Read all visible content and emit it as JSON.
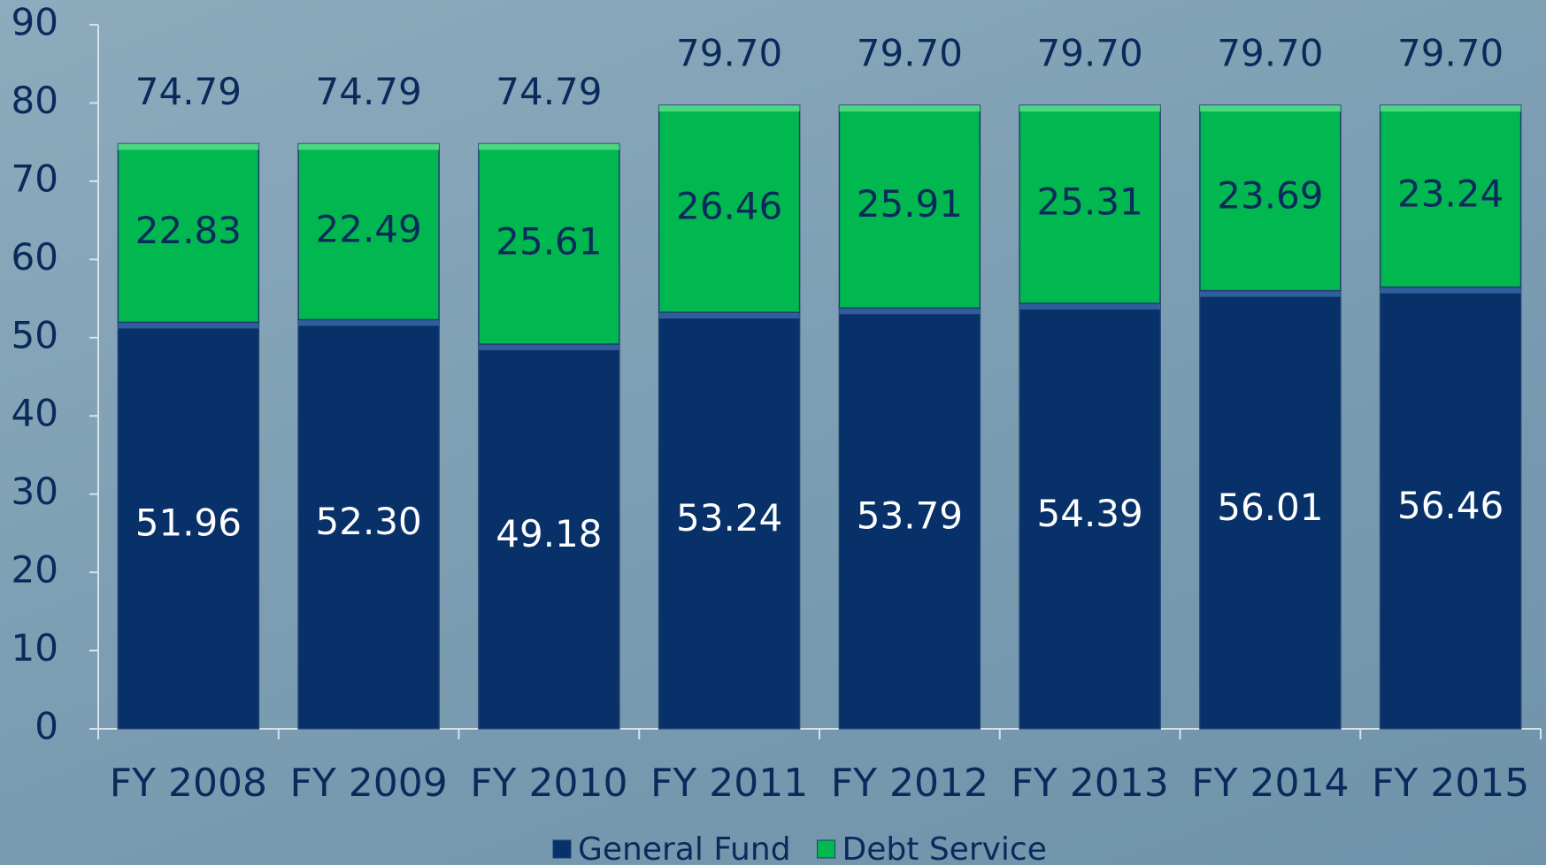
{
  "chart_data": {
    "type": "stacked_bar",
    "categories": [
      "FY 2008",
      "FY 2009",
      "FY 2010",
      "FY 2011",
      "FY 2012",
      "FY 2013",
      "FY 2014",
      "FY 2015"
    ],
    "series": [
      {
        "name": "General Fund",
        "color": "#08316a",
        "values": [
          51.96,
          52.3,
          49.18,
          53.24,
          53.79,
          54.39,
          56.01,
          56.46
        ],
        "value_labels": [
          "51.96",
          "52.30",
          "49.18",
          "53.24",
          "53.79",
          "54.39",
          "56.01",
          "56.46"
        ]
      },
      {
        "name": "Debt Service",
        "color": "#00b84f",
        "values": [
          22.83,
          22.49,
          25.61,
          26.46,
          25.91,
          25.31,
          23.69,
          23.24
        ],
        "value_labels": [
          "22.83",
          "22.49",
          "25.61",
          "26.46",
          "25.91",
          "25.31",
          "23.69",
          "23.24"
        ]
      }
    ],
    "totals": [
      74.79,
      74.79,
      74.79,
      79.7,
      79.7,
      79.7,
      79.7,
      79.7
    ],
    "total_labels": [
      "74.79",
      "74.79",
      "74.79",
      "79.70",
      "79.70",
      "79.70",
      "79.70",
      "79.70"
    ],
    "ylim": [
      0,
      90
    ],
    "yticks": [
      0,
      10,
      20,
      30,
      40,
      50,
      60,
      70,
      80,
      90
    ],
    "legend": "bottom"
  }
}
